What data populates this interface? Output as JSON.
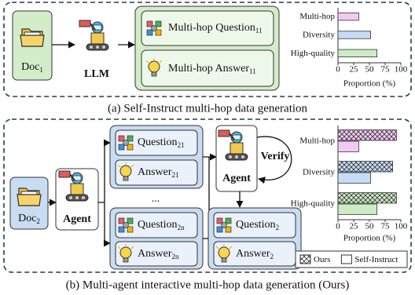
{
  "panel_a": {
    "caption": "(a) Self-Instruct multi-hop data generation",
    "doc": {
      "text": "Doc",
      "sub": "1"
    },
    "model": "LLM",
    "question": {
      "text": "Multi-hop Question",
      "sub": "11"
    },
    "answer": {
      "text": "Multi-hop Answer",
      "sub": "11"
    }
  },
  "panel_b": {
    "caption": "(b) Multi-agent interactive multi-hop data generation (Ours)",
    "doc": {
      "text": "Doc",
      "sub": "2"
    },
    "agent": "Agent",
    "question_1": {
      "text": "Question",
      "sub": "21"
    },
    "answer_1": {
      "text": "Answer",
      "sub": "21"
    },
    "ellipsis": "...",
    "question_n": {
      "text": "Question",
      "sub": "2n"
    },
    "answer_n": {
      "text": "Answer",
      "sub": "2n"
    },
    "verifier": "Agent",
    "verify": "Verify",
    "question_final": {
      "text": "Question",
      "sub": "2"
    },
    "answer_final": {
      "text": "Answer",
      "sub": "2"
    }
  },
  "chart_data": [
    {
      "type": "bar",
      "orientation": "horizontal",
      "categories": [
        "Multi-hop",
        "Diversity",
        "High-quality"
      ],
      "values": [
        33,
        52,
        62
      ],
      "colors": [
        "#f3c9f3",
        "#c6dcf5",
        "#cdebc4"
      ],
      "xlim": [
        0,
        100
      ],
      "xticks": [
        0,
        25,
        50,
        75,
        100
      ],
      "xlabel": "Proportion (%)"
    },
    {
      "type": "bar",
      "orientation": "horizontal",
      "categories": [
        "Multi-hop",
        "Diversity",
        "High-quality"
      ],
      "colors": [
        "#f3c9f3",
        "#c6dcf5",
        "#cdebc4"
      ],
      "series": [
        {
          "name": "Ours",
          "values": [
            93,
            87,
            93
          ],
          "hatch": true
        },
        {
          "name": "Self-Instruct",
          "values": [
            33,
            52,
            62
          ],
          "hatch": false
        }
      ],
      "xlim": [
        0,
        100
      ],
      "xticks": [
        0,
        25,
        50,
        75,
        100
      ],
      "xlabel": "Proportion (%)",
      "legend": "bottom"
    }
  ]
}
